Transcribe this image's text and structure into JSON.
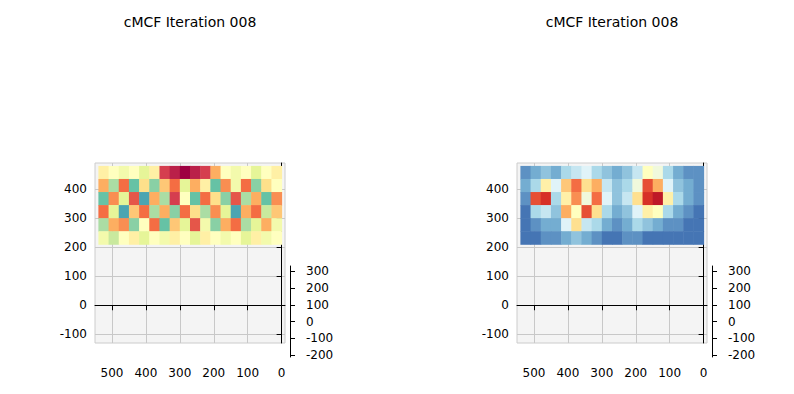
{
  "chart_data": [
    {
      "type": "heatmap",
      "title": "cMCF Iteration 008",
      "xlim": [
        -10,
        550
      ],
      "xticks": [
        0,
        100,
        200,
        300,
        400,
        500
      ],
      "zlim": [
        -130,
        490
      ],
      "zticks": [
        -100,
        0,
        100,
        200,
        300,
        400
      ],
      "ylim": [
        -210,
        330
      ],
      "yticks": [
        -200,
        -100,
        0,
        100,
        200,
        300
      ],
      "grid": true,
      "vlim": [
        0,
        1
      ],
      "x_edges": [
        540,
        510,
        480,
        450,
        420,
        390,
        360,
        330,
        300,
        270,
        240,
        210,
        180,
        150,
        120,
        90,
        60,
        30,
        0
      ],
      "z_edges": [
        480,
        435,
        390,
        345,
        300,
        255,
        210
      ],
      "values": [
        [
          0.45,
          0.5,
          0.55,
          0.5,
          0.6,
          0.45,
          0.1,
          0.05,
          0.0,
          0.05,
          0.1,
          0.3,
          0.5,
          0.55,
          0.5,
          0.6,
          0.5,
          0.45
        ],
        [
          0.3,
          0.7,
          0.2,
          0.8,
          0.4,
          0.75,
          0.35,
          0.2,
          0.6,
          0.3,
          0.45,
          0.8,
          0.25,
          0.55,
          0.2,
          0.75,
          0.4,
          0.5
        ],
        [
          0.8,
          0.25,
          0.6,
          0.15,
          0.85,
          0.3,
          0.7,
          0.1,
          0.5,
          0.8,
          0.2,
          0.4,
          0.75,
          0.15,
          0.7,
          0.3,
          0.8,
          0.25
        ],
        [
          0.2,
          0.6,
          0.85,
          0.35,
          0.2,
          0.7,
          0.3,
          0.75,
          0.2,
          0.4,
          0.7,
          0.25,
          0.6,
          0.85,
          0.3,
          0.2,
          0.65,
          0.35
        ],
        [
          0.7,
          0.3,
          0.25,
          0.75,
          0.5,
          0.2,
          0.8,
          0.35,
          0.6,
          0.15,
          0.55,
          0.75,
          0.3,
          0.2,
          0.7,
          0.6,
          0.3,
          0.55
        ],
        [
          0.55,
          0.65,
          0.5,
          0.45,
          0.6,
          0.5,
          0.55,
          0.45,
          0.5,
          0.6,
          0.45,
          0.5,
          0.55,
          0.5,
          0.6,
          0.45,
          0.55,
          0.5
        ]
      ]
    },
    {
      "type": "heatmap",
      "title": "cMCF Iteration 008",
      "xlim": [
        -10,
        550
      ],
      "xticks": [
        0,
        100,
        200,
        300,
        400,
        500
      ],
      "zlim": [
        -130,
        490
      ],
      "zticks": [
        -100,
        0,
        100,
        200,
        300,
        400
      ],
      "ylim": [
        -210,
        330
      ],
      "yticks": [
        -200,
        -100,
        0,
        100,
        200,
        300
      ],
      "grid": true,
      "vlim": [
        0,
        1
      ],
      "x_edges": [
        540,
        510,
        480,
        450,
        420,
        390,
        360,
        330,
        300,
        270,
        240,
        210,
        180,
        150,
        120,
        90,
        60,
        30,
        0
      ],
      "z_edges": [
        480,
        435,
        390,
        345,
        300,
        255,
        210
      ],
      "values": [
        [
          0.15,
          0.2,
          0.25,
          0.2,
          0.3,
          0.35,
          0.4,
          0.3,
          0.25,
          0.2,
          0.25,
          0.35,
          0.5,
          0.45,
          0.3,
          0.2,
          0.15,
          0.15
        ],
        [
          0.2,
          0.3,
          0.55,
          0.4,
          0.65,
          0.8,
          0.6,
          0.7,
          0.35,
          0.25,
          0.3,
          0.45,
          0.85,
          0.7,
          0.4,
          0.25,
          0.2,
          0.15
        ],
        [
          0.15,
          0.85,
          0.9,
          0.3,
          0.55,
          0.75,
          0.45,
          0.8,
          0.4,
          0.25,
          0.35,
          0.6,
          0.9,
          0.95,
          0.55,
          0.3,
          0.2,
          0.15
        ],
        [
          0.1,
          0.3,
          0.35,
          0.25,
          0.7,
          0.5,
          0.85,
          0.6,
          0.3,
          0.2,
          0.25,
          0.4,
          0.55,
          0.5,
          0.3,
          0.2,
          0.15,
          0.1
        ],
        [
          0.1,
          0.15,
          0.2,
          0.2,
          0.4,
          0.6,
          0.35,
          0.3,
          0.2,
          0.15,
          0.2,
          0.3,
          0.25,
          0.2,
          0.15,
          0.15,
          0.1,
          0.1
        ],
        [
          0.1,
          0.1,
          0.15,
          0.15,
          0.2,
          0.25,
          0.2,
          0.15,
          0.1,
          0.1,
          0.15,
          0.15,
          0.1,
          0.1,
          0.1,
          0.1,
          0.1,
          0.1
        ]
      ]
    }
  ]
}
